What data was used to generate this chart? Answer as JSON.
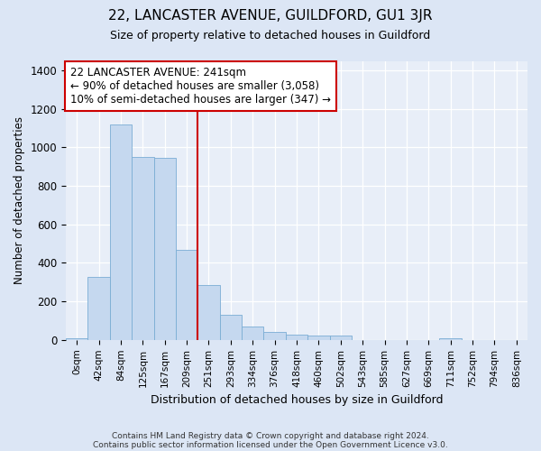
{
  "title": "22, LANCASTER AVENUE, GUILDFORD, GU1 3JR",
  "subtitle": "Size of property relative to detached houses in Guildford",
  "xlabel": "Distribution of detached houses by size in Guildford",
  "ylabel": "Number of detached properties",
  "bin_labels": [
    "0sqm",
    "42sqm",
    "84sqm",
    "125sqm",
    "167sqm",
    "209sqm",
    "251sqm",
    "293sqm",
    "334sqm",
    "376sqm",
    "418sqm",
    "460sqm",
    "502sqm",
    "543sqm",
    "585sqm",
    "627sqm",
    "669sqm",
    "711sqm",
    "752sqm",
    "794sqm",
    "836sqm"
  ],
  "bar_values": [
    10,
    325,
    1120,
    950,
    945,
    470,
    285,
    130,
    70,
    42,
    25,
    22,
    22,
    0,
    0,
    0,
    0,
    10,
    0,
    0,
    0
  ],
  "bar_color": "#c5d8ef",
  "bar_edge_color": "#7aadd4",
  "vline_color": "#cc0000",
  "annotation_text": "22 LANCASTER AVENUE: 241sqm\n← 90% of detached houses are smaller (3,058)\n10% of semi-detached houses are larger (347) →",
  "annotation_box_color": "#ffffff",
  "annotation_box_edge": "#cc0000",
  "ylim": [
    0,
    1450
  ],
  "yticks": [
    0,
    200,
    400,
    600,
    800,
    1000,
    1200,
    1400
  ],
  "footer1": "Contains HM Land Registry data © Crown copyright and database right 2024.",
  "footer2": "Contains public sector information licensed under the Open Government Licence v3.0.",
  "bg_color": "#dce6f5",
  "plot_bg_color": "#e8eef8"
}
